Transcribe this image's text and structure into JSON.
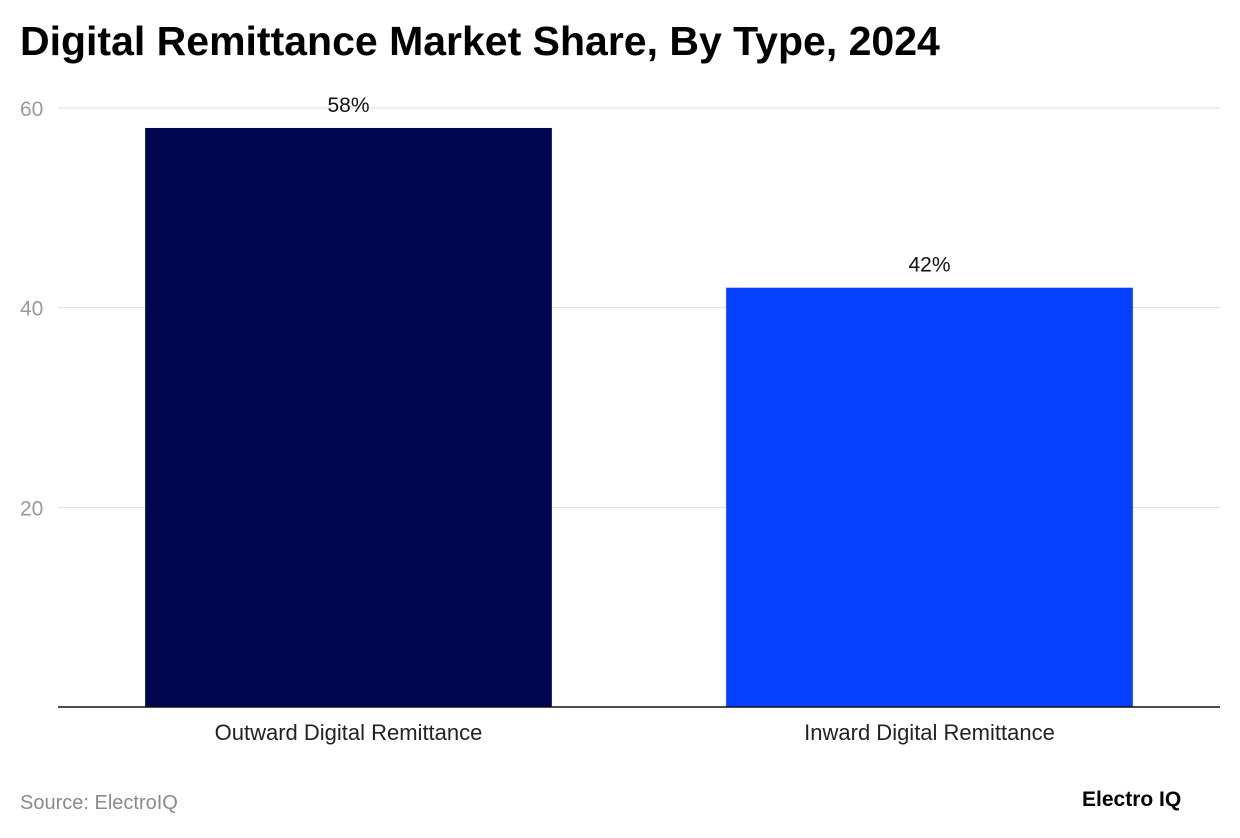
{
  "title": "Digital Remittance Market Share, By Type, 2024",
  "source": "Source: ElectroIQ",
  "brand": "Electro IQ",
  "chart_data": {
    "type": "bar",
    "title": "Digital Remittance Market Share, By Type, 2024",
    "categories": [
      "Outward Digital Remittance",
      "Inward Digital Remittance"
    ],
    "values": [
      58,
      42
    ],
    "data_labels": [
      "58%",
      "42%"
    ],
    "colors": [
      "#000550",
      "#0540ff"
    ],
    "yticks": [
      "20",
      "40",
      "60"
    ],
    "ylim": [
      0,
      60
    ],
    "xlabel": "",
    "ylabel": "",
    "grid": true,
    "legend": "none"
  }
}
